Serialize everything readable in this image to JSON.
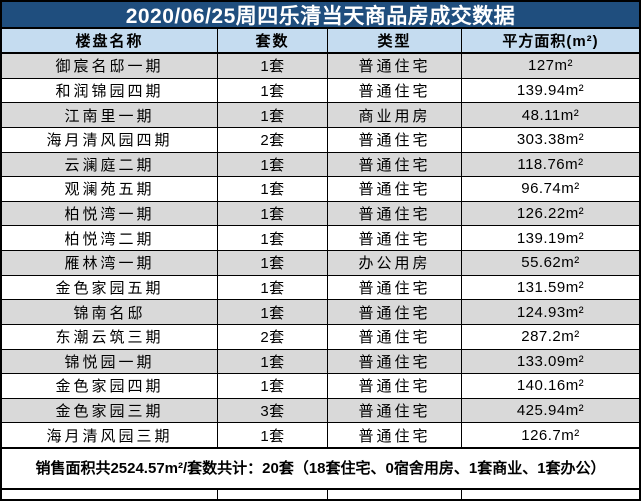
{
  "title": "2020/06/25周四乐清当天商品房成交数据",
  "table": {
    "headers": [
      "楼盘名称",
      "套数",
      "类型",
      "平方面积(m²)"
    ],
    "rows": [
      {
        "name": "御宸名邸一期",
        "units": "1套",
        "type": "普通住宅",
        "area": "127m²"
      },
      {
        "name": "和润锦园四期",
        "units": "1套",
        "type": "普通住宅",
        "area": "139.94m²"
      },
      {
        "name": "江南里一期",
        "units": "1套",
        "type": "商业用房",
        "area": "48.11m²"
      },
      {
        "name": "海月清风园四期",
        "units": "2套",
        "type": "普通住宅",
        "area": "303.38m²"
      },
      {
        "name": "云澜庭二期",
        "units": "1套",
        "type": "普通住宅",
        "area": "118.76m²"
      },
      {
        "name": "观澜苑五期",
        "units": "1套",
        "type": "普通住宅",
        "area": "96.74m²"
      },
      {
        "name": "柏悦湾一期",
        "units": "1套",
        "type": "普通住宅",
        "area": "126.22m²"
      },
      {
        "name": "柏悦湾二期",
        "units": "1套",
        "type": "普通住宅",
        "area": "139.19m²"
      },
      {
        "name": "雁林湾一期",
        "units": "1套",
        "type": "办公用房",
        "area": "55.62m²"
      },
      {
        "name": "金色家园五期",
        "units": "1套",
        "type": "普通住宅",
        "area": "131.59m²"
      },
      {
        "name": "锦南名邸",
        "units": "1套",
        "type": "普通住宅",
        "area": "124.93m²"
      },
      {
        "name": "东潮云筑三期",
        "units": "2套",
        "type": "普通住宅",
        "area": "287.2m²"
      },
      {
        "name": "锦悦园一期",
        "units": "1套",
        "type": "普通住宅",
        "area": "133.09m²"
      },
      {
        "name": "金色家园四期",
        "units": "1套",
        "type": "普通住宅",
        "area": "140.16m²"
      },
      {
        "name": "金色家园三期",
        "units": "3套",
        "type": "普通住宅",
        "area": "425.94m²"
      },
      {
        "name": "海月清风园三期",
        "units": "1套",
        "type": "普通住宅",
        "area": "126.7m²"
      }
    ]
  },
  "summary": "销售面积共2524.57m²/套数共计：20套（18套住宅、0宿舍用房、1套商业、1套办公）",
  "colors": {
    "title_bg": "#1F4E7E",
    "title_text": "#FFFFFF",
    "header_bg": "#C5DCF0",
    "row_shaded_bg": "#D9D9D9",
    "row_bg": "#FFFFFF",
    "border": "#000000",
    "text": "#000000"
  },
  "chart_data": {
    "type": "table",
    "title": "2020/06/25周四乐清当天商品房成交数据",
    "columns": [
      "楼盘名称",
      "套数",
      "类型",
      "平方面积(m²)"
    ],
    "rows": [
      [
        "御宸名邸一期",
        1,
        "普通住宅",
        127
      ],
      [
        "和润锦园四期",
        1,
        "普通住宅",
        139.94
      ],
      [
        "江南里一期",
        1,
        "商业用房",
        48.11
      ],
      [
        "海月清风园四期",
        2,
        "普通住宅",
        303.38
      ],
      [
        "云澜庭二期",
        1,
        "普通住宅",
        118.76
      ],
      [
        "观澜苑五期",
        1,
        "普通住宅",
        96.74
      ],
      [
        "柏悦湾一期",
        1,
        "普通住宅",
        126.22
      ],
      [
        "柏悦湾二期",
        1,
        "普通住宅",
        139.19
      ],
      [
        "雁林湾一期",
        1,
        "办公用房",
        55.62
      ],
      [
        "金色家园五期",
        1,
        "普通住宅",
        131.59
      ],
      [
        "锦南名邸",
        1,
        "普通住宅",
        124.93
      ],
      [
        "东潮云筑三期",
        2,
        "普通住宅",
        287.2
      ],
      [
        "锦悦园一期",
        1,
        "普通住宅",
        133.09
      ],
      [
        "金色家园四期",
        1,
        "普通住宅",
        140.16
      ],
      [
        "金色家园三期",
        3,
        "普通住宅",
        425.94
      ],
      [
        "海月清风园三期",
        1,
        "普通住宅",
        126.7
      ]
    ],
    "totals": {
      "total_area_m2": 2524.57,
      "total_units": 20,
      "breakdown": {
        "住宅": 18,
        "宿舍用房": 0,
        "商业": 1,
        "办公": 1
      }
    }
  }
}
